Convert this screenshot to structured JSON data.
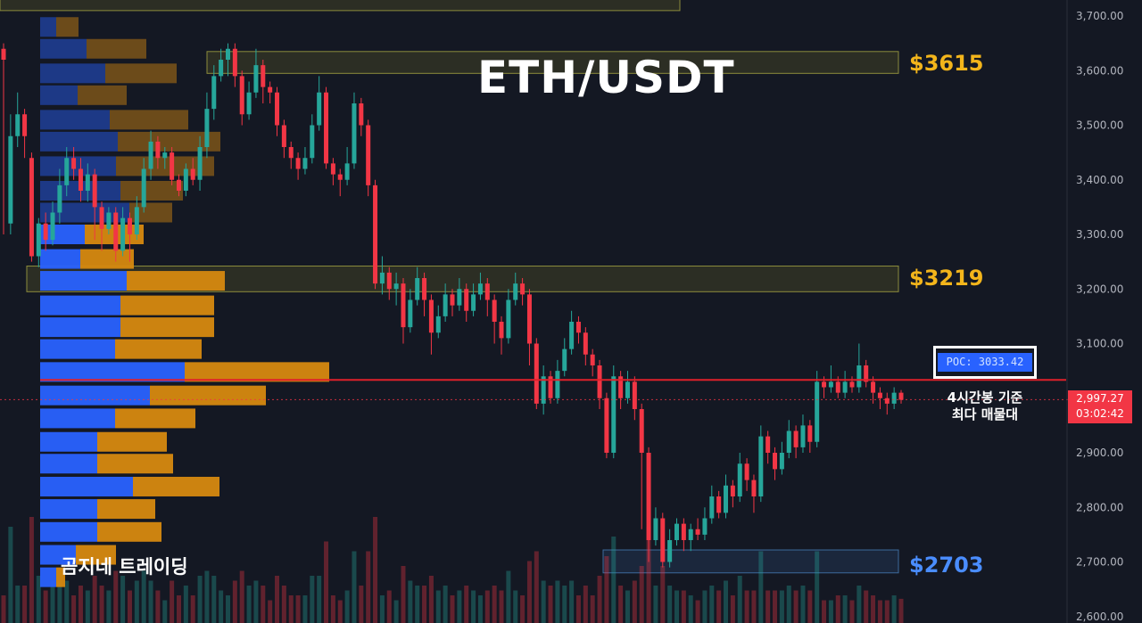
{
  "colors": {
    "background": "#141823",
    "up": "#26a69a",
    "down": "#f23645",
    "zone_fill": "#3a3a1c",
    "zone_border": "#8c8c3c",
    "vp_buy": "#2962ff",
    "vp_sell": "#d68910",
    "poc_line": "#e0202a",
    "level_gold": "#f3b51b",
    "level_blue": "#4a8dff"
  },
  "annotations": {
    "title": "ETH/USDT",
    "level_high": "$3615",
    "level_mid": "$3219",
    "level_low": "$2703",
    "poc_label": "POC: 3033.42",
    "note_line1": "4시간봉 기준",
    "note_line2": "최다 매물대",
    "brand": "곰지네 트레이딩"
  },
  "price_tag": {
    "price": "2,997.27",
    "countdown": "03:02:42"
  },
  "chart_data": {
    "type": "candlestick",
    "title": "ETH/USDT",
    "timeframe": "4h",
    "y_axis": {
      "ticks": [
        "3,700.00",
        "3,600.00",
        "3,500.00",
        "3,400.00",
        "3,300.00",
        "3,200.00",
        "3,100.00",
        "3,000.00",
        "2,900.00",
        "2,800.00",
        "2,700.00",
        "2,600.00"
      ],
      "range": [
        2600,
        3720
      ],
      "side": "right",
      "grid": false
    },
    "current_price": 2997.27,
    "poc": 3033.42,
    "zones": [
      {
        "name": "top",
        "low": 3710,
        "high": 3740
      },
      {
        "name": "$3615",
        "low": 3595,
        "high": 3635
      },
      {
        "name": "$3219",
        "low": 3195,
        "high": 3242
      },
      {
        "name": "$2703",
        "low": 2680,
        "high": 2722
      }
    ],
    "volume_profile": {
      "bins": [
        {
          "price": 3680,
          "buy": 18,
          "sell": 25
        },
        {
          "price": 3640,
          "buy": 52,
          "sell": 67
        },
        {
          "price": 3595,
          "buy": 73,
          "sell": 80
        },
        {
          "price": 3555,
          "buy": 42,
          "sell": 55
        },
        {
          "price": 3510,
          "buy": 78,
          "sell": 88
        },
        {
          "price": 3470,
          "buy": 87,
          "sell": 115
        },
        {
          "price": 3425,
          "buy": 85,
          "sell": 110
        },
        {
          "price": 3380,
          "buy": 90,
          "sell": 70
        },
        {
          "price": 3340,
          "buy": 100,
          "sell": 48
        },
        {
          "price": 3300,
          "buy": 50,
          "sell": 66
        },
        {
          "price": 3255,
          "buy": 45,
          "sell": 60
        },
        {
          "price": 3215,
          "buy": 97,
          "sell": 110
        },
        {
          "price": 3170,
          "buy": 90,
          "sell": 105
        },
        {
          "price": 3130,
          "buy": 90,
          "sell": 105
        },
        {
          "price": 3090,
          "buy": 84,
          "sell": 97
        },
        {
          "price": 3048,
          "buy": 162,
          "sell": 162
        },
        {
          "price": 3005,
          "buy": 123,
          "sell": 130
        },
        {
          "price": 2963,
          "buy": 84,
          "sell": 90
        },
        {
          "price": 2920,
          "buy": 64,
          "sell": 78
        },
        {
          "price": 2880,
          "buy": 64,
          "sell": 85
        },
        {
          "price": 2838,
          "buy": 104,
          "sell": 97
        },
        {
          "price": 2797,
          "buy": 64,
          "sell": 65
        },
        {
          "price": 2755,
          "buy": 64,
          "sell": 72
        },
        {
          "price": 2713,
          "buy": 40,
          "sell": 45
        },
        {
          "price": 2672,
          "buy": 18,
          "sell": 10
        }
      ]
    },
    "candles": [
      [
        3640,
        3620,
        3650,
        3300
      ],
      [
        3320,
        3480,
        3520,
        3300
      ],
      [
        3480,
        3520,
        3560,
        3460
      ],
      [
        3520,
        3480,
        3530,
        3440
      ],
      [
        3440,
        3260,
        3450,
        3250
      ],
      [
        3260,
        3320,
        3330,
        3240
      ],
      [
        3320,
        3290,
        3340,
        3270
      ],
      [
        3290,
        3340,
        3360,
        3280
      ],
      [
        3340,
        3390,
        3420,
        3320
      ],
      [
        3390,
        3440,
        3460,
        3370
      ],
      [
        3440,
        3420,
        3460,
        3400
      ],
      [
        3420,
        3380,
        3440,
        3360
      ],
      [
        3380,
        3410,
        3430,
        3360
      ],
      [
        3410,
        3350,
        3420,
        3290
      ],
      [
        3350,
        3310,
        3360,
        3270
      ],
      [
        3310,
        3340,
        3350,
        3300
      ],
      [
        3340,
        3270,
        3350,
        3250
      ],
      [
        3270,
        3330,
        3350,
        3260
      ],
      [
        3330,
        3300,
        3340,
        3250
      ],
      [
        3300,
        3350,
        3370,
        3290
      ],
      [
        3350,
        3420,
        3440,
        3340
      ],
      [
        3420,
        3470,
        3490,
        3400
      ],
      [
        3470,
        3440,
        3480,
        3420
      ],
      [
        3440,
        3450,
        3460,
        3420
      ],
      [
        3450,
        3400,
        3460,
        3390
      ],
      [
        3400,
        3380,
        3410,
        3370
      ],
      [
        3380,
        3420,
        3430,
        3370
      ],
      [
        3420,
        3400,
        3440,
        3390
      ],
      [
        3400,
        3460,
        3480,
        3380
      ],
      [
        3460,
        3530,
        3560,
        3440
      ],
      [
        3530,
        3590,
        3610,
        3510
      ],
      [
        3590,
        3620,
        3640,
        3580
      ],
      [
        3620,
        3640,
        3650,
        3590
      ],
      [
        3640,
        3590,
        3650,
        3570
      ],
      [
        3590,
        3520,
        3600,
        3500
      ],
      [
        3520,
        3560,
        3580,
        3510
      ],
      [
        3560,
        3610,
        3640,
        3550
      ],
      [
        3610,
        3570,
        3620,
        3540
      ],
      [
        3570,
        3560,
        3580,
        3540
      ],
      [
        3560,
        3500,
        3570,
        3480
      ],
      [
        3500,
        3460,
        3510,
        3440
      ],
      [
        3460,
        3440,
        3470,
        3420
      ],
      [
        3440,
        3420,
        3450,
        3400
      ],
      [
        3420,
        3440,
        3460,
        3410
      ],
      [
        3440,
        3500,
        3520,
        3430
      ],
      [
        3500,
        3560,
        3590,
        3490
      ],
      [
        3560,
        3430,
        3570,
        3420
      ],
      [
        3430,
        3410,
        3440,
        3390
      ],
      [
        3410,
        3400,
        3420,
        3370
      ],
      [
        3400,
        3430,
        3460,
        3390
      ],
      [
        3430,
        3540,
        3560,
        3420
      ],
      [
        3540,
        3500,
        3550,
        3480
      ],
      [
        3500,
        3390,
        3510,
        3370
      ],
      [
        3390,
        3210,
        3400,
        3200
      ],
      [
        3210,
        3230,
        3260,
        3190
      ],
      [
        3230,
        3200,
        3240,
        3180
      ],
      [
        3200,
        3210,
        3230,
        3170
      ],
      [
        3210,
        3130,
        3220,
        3100
      ],
      [
        3130,
        3180,
        3200,
        3120
      ],
      [
        3180,
        3220,
        3240,
        3170
      ],
      [
        3220,
        3180,
        3230,
        3150
      ],
      [
        3180,
        3120,
        3190,
        3080
      ],
      [
        3120,
        3150,
        3170,
        3110
      ],
      [
        3150,
        3190,
        3210,
        3140
      ],
      [
        3190,
        3170,
        3200,
        3150
      ],
      [
        3170,
        3200,
        3220,
        3160
      ],
      [
        3200,
        3160,
        3210,
        3140
      ],
      [
        3160,
        3190,
        3210,
        3150
      ],
      [
        3190,
        3210,
        3230,
        3180
      ],
      [
        3210,
        3180,
        3220,
        3150
      ],
      [
        3180,
        3140,
        3190,
        3100
      ],
      [
        3140,
        3110,
        3150,
        3080
      ],
      [
        3110,
        3180,
        3200,
        3100
      ],
      [
        3180,
        3210,
        3230,
        3170
      ],
      [
        3210,
        3190,
        3220,
        3170
      ],
      [
        3190,
        3100,
        3200,
        3060
      ],
      [
        3100,
        2990,
        3110,
        2980
      ],
      [
        2990,
        3040,
        3060,
        2970
      ],
      [
        3040,
        3000,
        3050,
        2990
      ],
      [
        3000,
        3050,
        3070,
        2990
      ],
      [
        3050,
        3090,
        3110,
        3040
      ],
      [
        3090,
        3140,
        3160,
        3080
      ],
      [
        3140,
        3120,
        3150,
        3100
      ],
      [
        3120,
        3080,
        3130,
        3060
      ],
      [
        3080,
        3060,
        3090,
        3040
      ],
      [
        3060,
        3000,
        3070,
        2980
      ],
      [
        3000,
        2900,
        3010,
        2890
      ],
      [
        2900,
        3040,
        3060,
        2890
      ],
      [
        3040,
        3000,
        3050,
        2980
      ],
      [
        3000,
        3030,
        3050,
        2990
      ],
      [
        3030,
        2980,
        3040,
        2960
      ],
      [
        2980,
        2900,
        2990,
        2760
      ],
      [
        2900,
        2740,
        2910,
        2700
      ],
      [
        2740,
        2780,
        2800,
        2730
      ],
      [
        2780,
        2700,
        2790,
        2690
      ],
      [
        2700,
        2740,
        2760,
        2690
      ],
      [
        2740,
        2770,
        2780,
        2730
      ],
      [
        2770,
        2740,
        2780,
        2720
      ],
      [
        2740,
        2760,
        2770,
        2720
      ],
      [
        2760,
        2750,
        2780,
        2740
      ],
      [
        2750,
        2780,
        2800,
        2740
      ],
      [
        2780,
        2820,
        2840,
        2770
      ],
      [
        2820,
        2790,
        2830,
        2780
      ],
      [
        2790,
        2840,
        2860,
        2780
      ],
      [
        2840,
        2820,
        2850,
        2800
      ],
      [
        2820,
        2880,
        2900,
        2810
      ],
      [
        2880,
        2850,
        2890,
        2830
      ],
      [
        2850,
        2820,
        2860,
        2790
      ],
      [
        2820,
        2930,
        2950,
        2810
      ],
      [
        2930,
        2900,
        2940,
        2880
      ],
      [
        2900,
        2870,
        2910,
        2850
      ],
      [
        2870,
        2900,
        2920,
        2860
      ],
      [
        2900,
        2940,
        2960,
        2890
      ],
      [
        2940,
        2910,
        2950,
        2890
      ],
      [
        2910,
        2950,
        2970,
        2900
      ],
      [
        2950,
        2920,
        2960,
        2900
      ],
      [
        2920,
        3030,
        3050,
        2910
      ],
      [
        3030,
        3020,
        3040,
        3000
      ],
      [
        3020,
        3030,
        3060,
        3010
      ],
      [
        3030,
        3010,
        3040,
        3000
      ],
      [
        3010,
        3030,
        3050,
        3000
      ],
      [
        3030,
        3020,
        3040,
        3010
      ],
      [
        3020,
        3060,
        3100,
        3010
      ],
      [
        3060,
        3030,
        3070,
        3020
      ],
      [
        3030,
        3010,
        3040,
        2990
      ],
      [
        3010,
        3000,
        3020,
        2980
      ],
      [
        3000,
        2990,
        3010,
        2970
      ],
      [
        2990,
        3010,
        3020,
        2980
      ],
      [
        3010,
        2997,
        3015,
        2990
      ]
    ]
  }
}
